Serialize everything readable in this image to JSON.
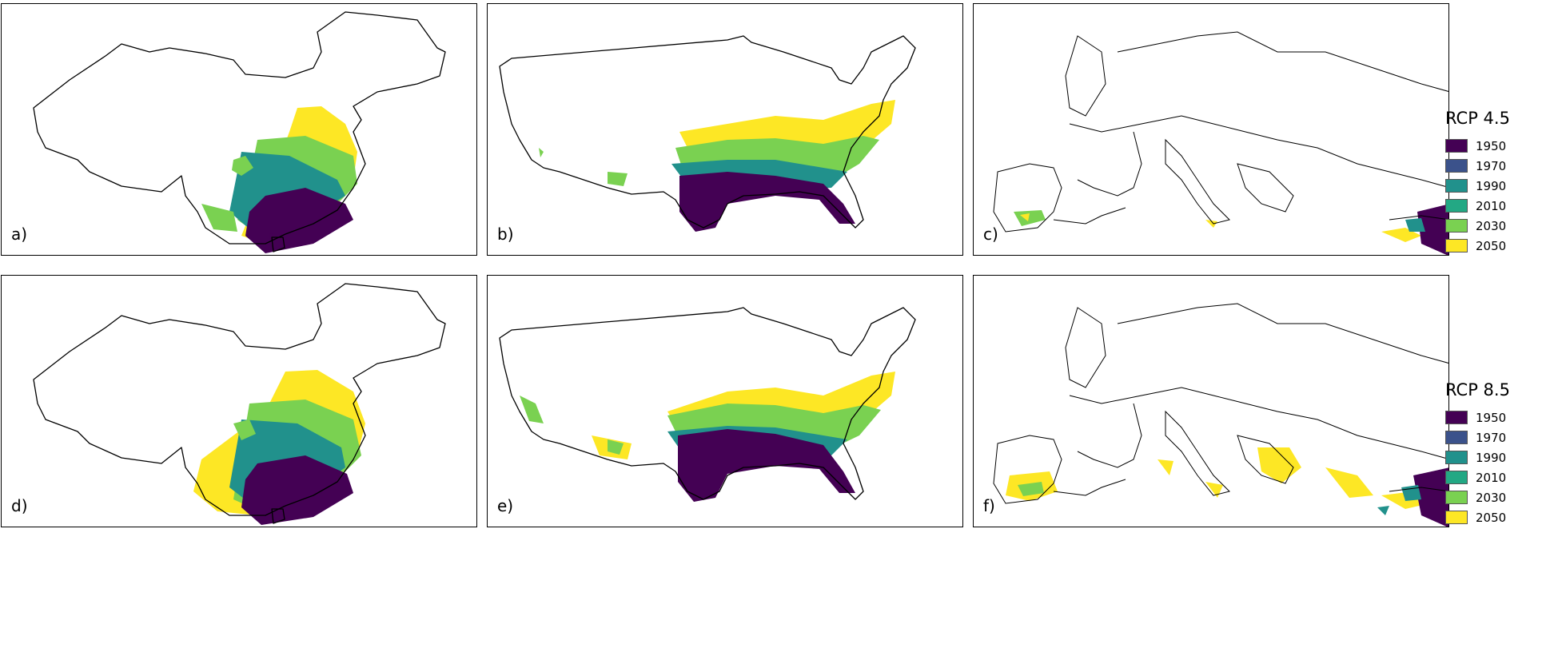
{
  "colors": {
    "1950": "#440154",
    "1970": "#3b528b",
    "1990": "#21918c",
    "2010": "#23a884",
    "2030": "#7ad151",
    "2050": "#fde725"
  },
  "panels": [
    {
      "label": "a)",
      "region": "china",
      "scenario": "rcp45"
    },
    {
      "label": "b)",
      "region": "usa",
      "scenario": "rcp45"
    },
    {
      "label": "c)",
      "region": "europe",
      "scenario": "rcp45"
    },
    {
      "label": "d)",
      "region": "china",
      "scenario": "rcp85"
    },
    {
      "label": "e)",
      "region": "usa",
      "scenario": "rcp85"
    },
    {
      "label": "f)",
      "region": "europe",
      "scenario": "rcp85"
    }
  ],
  "legends": [
    {
      "title": "RCP 4.5",
      "items": [
        "1950",
        "1970",
        "1990",
        "2010",
        "2030",
        "2050"
      ]
    },
    {
      "title": "RCP 8.5",
      "items": [
        "1950",
        "1970",
        "1990",
        "2010",
        "2030",
        "2050"
      ]
    }
  ]
}
